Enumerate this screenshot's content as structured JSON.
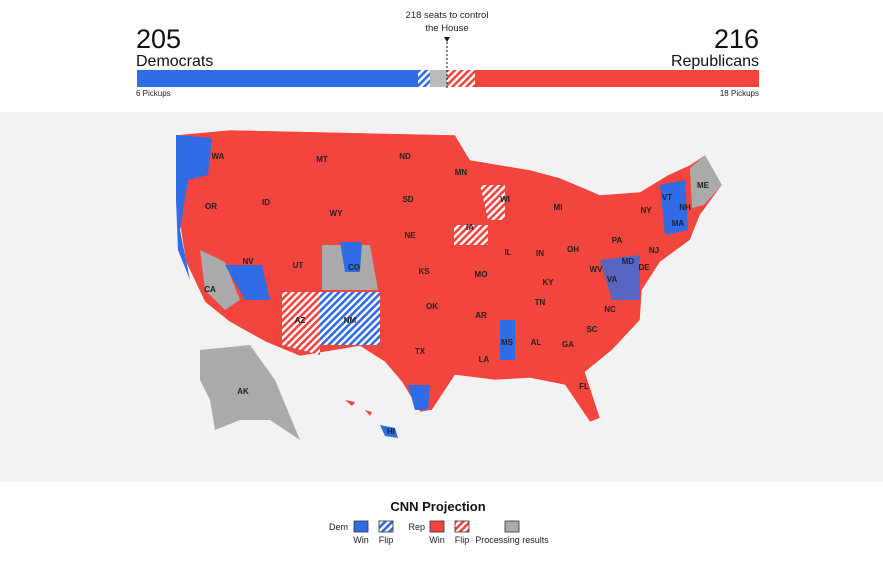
{
  "header": {
    "control_note": [
      "218 seats to control",
      "the House"
    ],
    "dem": {
      "seats": "205",
      "label": "Democrats",
      "pickups": "6 Pickups"
    },
    "rep": {
      "seats": "216",
      "label": "Republicans",
      "pickups": "18 Pickups"
    }
  },
  "map": {
    "states": [
      "WA",
      "MT",
      "ND",
      "MN",
      "OR",
      "ID",
      "WY",
      "SD",
      "WI",
      "MI",
      "NY",
      "ME",
      "VT",
      "NH",
      "MA",
      "NJ",
      "PA",
      "OH",
      "IN",
      "IL",
      "IA",
      "NE",
      "NV",
      "UT",
      "CO",
      "KS",
      "MO",
      "KY",
      "WV",
      "VA",
      "MD",
      "DE",
      "CA",
      "AZ",
      "NM",
      "OK",
      "AR",
      "TN",
      "NC",
      "SC",
      "GA",
      "AL",
      "MS",
      "LA",
      "TX",
      "FL",
      "AK",
      "HI"
    ]
  },
  "legend": {
    "title": "CNN Projection",
    "dem_label": "Dem",
    "rep_label": "Rep",
    "dem_items": [
      "Win",
      "Flip"
    ],
    "rep_items": [
      "Win",
      "Flip"
    ],
    "other": "Processing results"
  }
}
